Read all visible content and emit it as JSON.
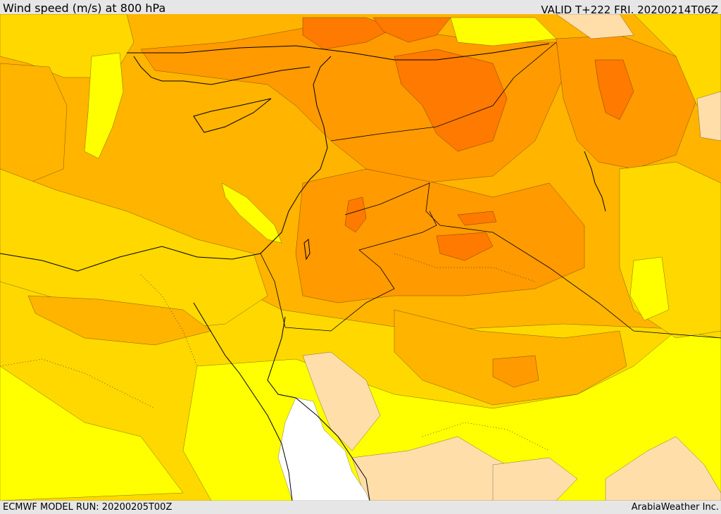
{
  "header": {
    "title": "Wind speed (m/s) at 800 hPa",
    "valid_time": "VALID T+222 FRI. 20200214T06Z"
  },
  "footer": {
    "model_run": "ECMWF MODEL RUN: 20200205T00Z",
    "credit": "ArabiaWeather Inc."
  },
  "map": {
    "field": "wind speed",
    "units": "m/s",
    "level_hpa": 800,
    "colors": {
      "bright_yellow": "#ffff00",
      "yellow": "#ffd800",
      "light_orange": "#ffb400",
      "orange": "#ff9a00",
      "dark_orange": "#ff7a00",
      "deep_orange": "#ff6400",
      "tan": "#ffdeaa",
      "calm_white": "#ffffff"
    }
  }
}
